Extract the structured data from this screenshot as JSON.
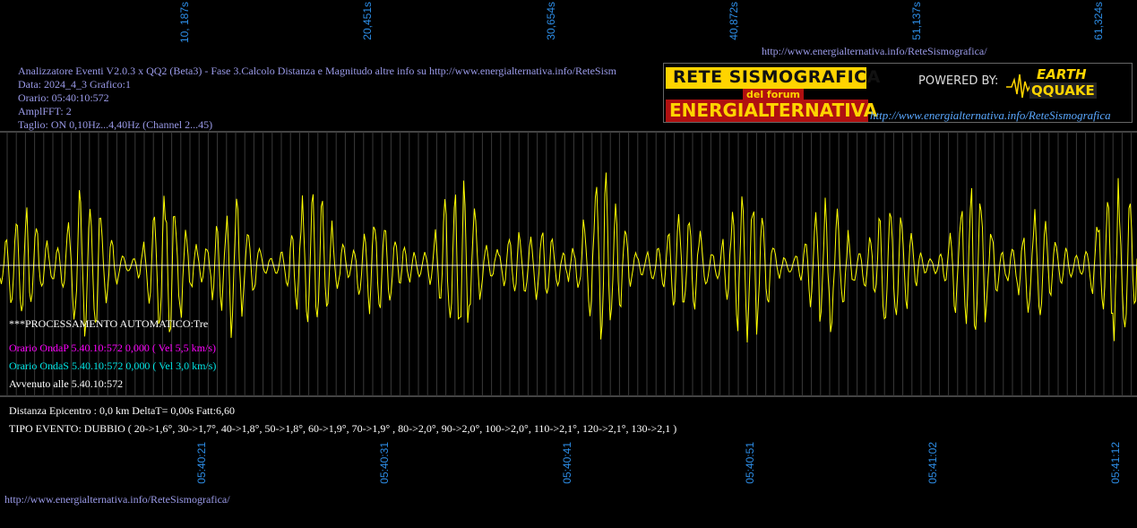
{
  "top_ticks": [
    "10, 187s",
    "20,451s",
    "30,654s",
    "40,872s",
    "51,137s",
    "61,324s"
  ],
  "bottom_ticks": [
    "05:40:21",
    "05:40:31",
    "05:40:41",
    "05:40:51",
    "05:41:02",
    "05:41:12"
  ],
  "header": {
    "url_top": "http://www.energialternativa.info/ReteSismografica/",
    "line1": "Analizzatore Eventi V2.0.3 x QQ2 (Beta3) - Fase 3.Calcolo Distanza e Magnitudo altre info su http://www.energialternativa.info/ReteSism",
    "line2": "Data: 2024_4_3 Grafico:1",
    "line3": "Orario: 05:40:10:572",
    "line4": "AmplFFT: 2",
    "line5": "Taglio: ON 0,10Hz...4,40Hz       (Channel 2...45)"
  },
  "logo": {
    "title": "RETE SISMOGRAFICA",
    "subtitle": "del forum",
    "name": "ENERGIALTERNATIVA",
    "powered": "POWERED BY:",
    "brand_top": "EARTH",
    "brand_bottom": "QQUAKE",
    "url": "http://www.energialternativa.info/ReteSismografica"
  },
  "status": {
    "processing": "***PROCESSAMENTO AUTOMATICO:Tre",
    "onda_p": "Orario OndaP 5.40.10:572  0,000 ( Vel 5,5 km/s)",
    "onda_s": "Orario OndaS 5.40.10:572  0,000 ( Vel 3,0 km/s)",
    "avvenuto": "Avvenuto alle 5.40.10:572",
    "distanza": "Distanza Epicentro : 0,0 km DeltaT= 0,00s  Fatt:6,60",
    "tipo": "TIPO EVENTO: DUBBIO ( 20->1,6°, 30->1,7°, 40->1,8°, 50->1,8°, 60->1,9°, 70->1,9° , 80->2,0°, 90->2,0°, 100->2,0°, 110->2,1°, 120->2,1°, 130->2,1 )"
  },
  "url_bottom": "http://www.energialternativa.info/ReteSismografica/",
  "colors": {
    "trace": "#ffff00",
    "tick_text": "#2d8de6",
    "info_text": "#9a9ae8",
    "onda_p": "#ff00ff",
    "onda_s": "#00e5e5",
    "grid": "#6f6f6f"
  }
}
